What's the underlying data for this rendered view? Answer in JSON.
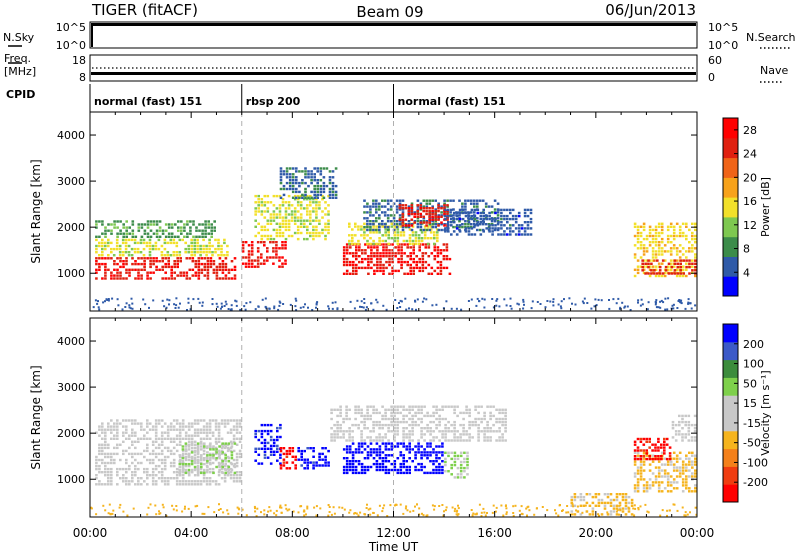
{
  "header": {
    "radar": "TIGER (fitACF)",
    "beam": "Beam 09",
    "date": "06/Jun/2013"
  },
  "top_panels": {
    "nsky_label": "N.Sky",
    "nsky_ticks": [
      "10^5",
      "10^0"
    ],
    "nsearch_label": "N.Search",
    "nsearch_ticks": [
      "10^5",
      "10^0"
    ],
    "freq_label_1": "Freq.",
    "freq_label_2": "[MHz]",
    "freq_ticks": [
      "18",
      "8"
    ],
    "nave_label": "Nave",
    "nave_ticks": [
      "60",
      "0"
    ],
    "cpid_label": "CPID"
  },
  "cpid_segments": [
    {
      "label": "normal (fast) 151",
      "start_hour": 0,
      "end_hour": 6
    },
    {
      "label": "rbsp 200",
      "start_hour": 6,
      "end_hour": 12
    },
    {
      "label": "normal (fast) 151",
      "start_hour": 12,
      "end_hour": 24
    }
  ],
  "x_axis": {
    "label": "Time UT",
    "ticks": [
      "00:00",
      "04:00",
      "08:00",
      "12:00",
      "16:00",
      "20:00",
      "00:00"
    ]
  },
  "colors": {
    "power": [
      "#0000ff",
      "#2f5aa8",
      "#3c8c4a",
      "#7ec850",
      "#f2e02a",
      "#f7a21b",
      "#f06418",
      "#e02010",
      "#ff0000"
    ],
    "velocity": [
      "#ff0000",
      "#f03c10",
      "#f4801a",
      "#f5b41e",
      "#c8c8c8",
      "#c8c8c8",
      "#7ed04b",
      "#3c8c3c",
      "#3c5ac8",
      "#0000ff"
    ]
  },
  "chart_data": [
    {
      "type": "heatmap",
      "title": "Power",
      "xlabel": "",
      "ylabel": "Slant Range [km]",
      "xlim": [
        0,
        24
      ],
      "ylim": [
        180,
        4500
      ],
      "yticks": [
        "1000",
        "2000",
        "3000",
        "4000"
      ],
      "colorbar": {
        "label": "Power [dB]",
        "ticks": [
          "4",
          "8",
          "12",
          "16",
          "20",
          "24",
          "28"
        ],
        "range": [
          0,
          30
        ]
      },
      "regions": [
        {
          "t0": 0.2,
          "t1": 5.8,
          "r0": 850,
          "r1": 1350,
          "value": 26
        },
        {
          "t0": 0.2,
          "t1": 5.5,
          "r0": 1350,
          "r1": 1750,
          "value": 14
        },
        {
          "t0": 0.2,
          "t1": 5.0,
          "r0": 1750,
          "r1": 2150,
          "value": 9
        },
        {
          "t0": 6.0,
          "t1": 7.8,
          "r0": 1100,
          "r1": 1700,
          "value": 27
        },
        {
          "t0": 6.5,
          "t1": 9.5,
          "r0": 1700,
          "r1": 2700,
          "value": 14
        },
        {
          "t0": 7.5,
          "t1": 9.8,
          "r0": 2600,
          "r1": 3300,
          "value": 6
        },
        {
          "t0": 10.0,
          "t1": 14.3,
          "r0": 950,
          "r1": 1650,
          "value": 27
        },
        {
          "t0": 10.2,
          "t1": 13.8,
          "r0": 1600,
          "r1": 2100,
          "value": 14
        },
        {
          "t0": 10.8,
          "t1": 16.2,
          "r0": 1900,
          "r1": 2600,
          "value": 6
        },
        {
          "t0": 12.2,
          "t1": 14.2,
          "r0": 2000,
          "r1": 2500,
          "value": 26
        },
        {
          "t0": 14.0,
          "t1": 17.5,
          "r0": 1800,
          "r1": 2400,
          "value": 5
        },
        {
          "t0": 21.5,
          "t1": 24.0,
          "r0": 900,
          "r1": 2100,
          "value": 16
        },
        {
          "t0": 21.8,
          "t1": 24.0,
          "r0": 950,
          "r1": 1300,
          "value": 25
        }
      ]
    },
    {
      "type": "heatmap",
      "title": "Velocity",
      "xlabel": "Time UT",
      "ylabel": "Slant Range [km]",
      "xlim": [
        0,
        24
      ],
      "ylim": [
        180,
        4500
      ],
      "yticks": [
        "1000",
        "2000",
        "3000",
        "4000"
      ],
      "colorbar": {
        "label": "Velocity [m s⁻¹]",
        "ticks": [
          "-200",
          "-100",
          "-50",
          "-15",
          "15",
          "50",
          "100",
          "200"
        ],
        "range": [
          -250,
          250
        ]
      },
      "regions": [
        {
          "t0": 0.2,
          "t1": 6.0,
          "r0": 850,
          "r1": 2300,
          "value": 0
        },
        {
          "t0": 3.5,
          "t1": 5.8,
          "r0": 1100,
          "r1": 1800,
          "value": 40
        },
        {
          "t0": 6.5,
          "t1": 7.6,
          "r0": 1300,
          "r1": 2200,
          "value": 220
        },
        {
          "t0": 7.5,
          "t1": 8.2,
          "r0": 1200,
          "r1": 1700,
          "value": -220
        },
        {
          "t0": 8.2,
          "t1": 9.5,
          "r0": 1200,
          "r1": 1700,
          "value": 220
        },
        {
          "t0": 10.0,
          "t1": 14.0,
          "r0": 1100,
          "r1": 1800,
          "value": 230
        },
        {
          "t0": 9.5,
          "t1": 16.5,
          "r0": 1800,
          "r1": 2600,
          "value": 0
        },
        {
          "t0": 14.0,
          "t1": 15.0,
          "r0": 1000,
          "r1": 1600,
          "value": 60
        },
        {
          "t0": 21.5,
          "t1": 24.0,
          "r0": 700,
          "r1": 1600,
          "value": -60
        },
        {
          "t0": 21.5,
          "t1": 23.0,
          "r0": 1400,
          "r1": 1900,
          "value": -220
        },
        {
          "t0": 23.0,
          "t1": 24.0,
          "r0": 1800,
          "r1": 2400,
          "value": 0
        },
        {
          "t0": 19.0,
          "t1": 21.5,
          "r0": 200,
          "r1": 700,
          "value": -60
        }
      ]
    }
  ]
}
